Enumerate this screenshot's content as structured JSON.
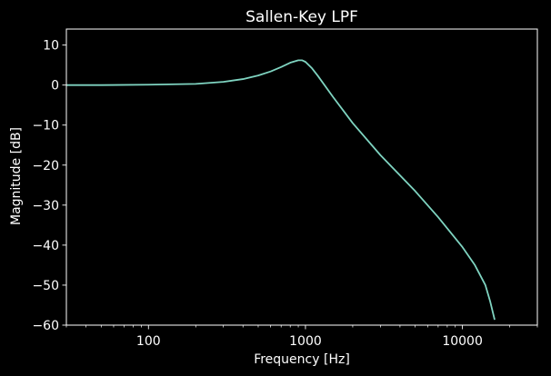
{
  "chart_data": {
    "type": "line",
    "title": "Sallen-Key LPF",
    "xlabel": "Frequency [Hz]",
    "ylabel": "Magnitude [dB]",
    "xscale": "log",
    "xlim": [
      30,
      30000
    ],
    "ylim": [
      -60,
      14
    ],
    "xticks": [
      {
        "value": 100,
        "label": "100"
      },
      {
        "value": 1000,
        "label": "1000"
      },
      {
        "value": 10000,
        "label": "10000"
      }
    ],
    "yticks": [
      {
        "value": 10,
        "label": "10"
      },
      {
        "value": 0,
        "label": "0"
      },
      {
        "value": -10,
        "label": "−10"
      },
      {
        "value": -20,
        "label": "−20"
      },
      {
        "value": -30,
        "label": "−30"
      },
      {
        "value": -40,
        "label": "−40"
      },
      {
        "value": -50,
        "label": "−50"
      },
      {
        "value": -60,
        "label": "−60"
      }
    ],
    "grid": false,
    "legend": "none",
    "series": [
      {
        "color": "#7fd4c1",
        "x": [
          30,
          50,
          100,
          200,
          300,
          400,
          500,
          600,
          700,
          800,
          900,
          950,
          1000,
          1100,
          1200,
          1500,
          2000,
          3000,
          5000,
          7000,
          10000,
          12000,
          14000,
          15000,
          16000
        ],
        "y": [
          0,
          0,
          0.1,
          0.3,
          0.8,
          1.5,
          2.4,
          3.4,
          4.5,
          5.6,
          6.2,
          6.2,
          5.8,
          4.2,
          2.3,
          -3,
          -9.5,
          -17.5,
          -26.5,
          -33,
          -40.5,
          -45,
          -50,
          -54,
          -58.5
        ]
      }
    ]
  }
}
